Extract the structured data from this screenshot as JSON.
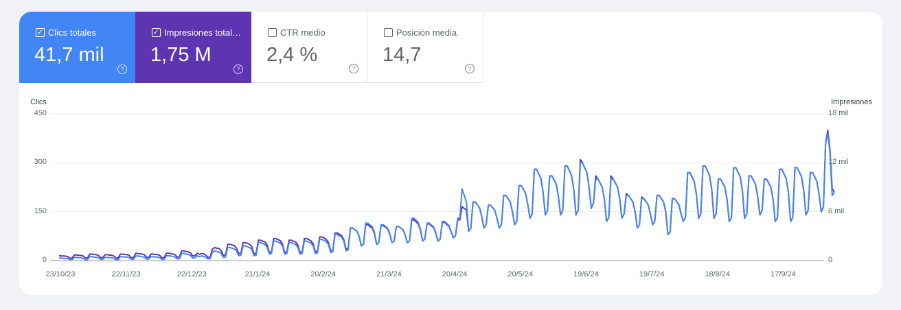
{
  "tabs": [
    {
      "label": "Clics totales",
      "value": "41,7 mil",
      "checked": true,
      "color": "#4285f4"
    },
    {
      "label": "Impresiones total…",
      "value": "1,75 M",
      "checked": true,
      "color": "#5e35b1"
    },
    {
      "label": "CTR medio",
      "value": "2,4 %",
      "checked": false
    },
    {
      "label": "Posición media",
      "value": "14,7",
      "checked": false
    }
  ],
  "help_icon": "?",
  "chart_data": {
    "type": "line",
    "left_axis": {
      "title": "Clics",
      "ticks": [
        "450",
        "300",
        "150",
        "0"
      ],
      "range": [
        0,
        450
      ]
    },
    "right_axis": {
      "title": "Impresiones",
      "ticks": [
        "18 mil",
        "12 mil",
        "6 mil",
        "0"
      ],
      "range": [
        0,
        18000
      ]
    },
    "x_ticks": [
      "23/10/23",
      "22/11/23",
      "22/12/23",
      "21/1/24",
      "20/2/24",
      "21/3/24",
      "20/4/24",
      "20/5/24",
      "19/6/24",
      "19/7/24",
      "18/8/24",
      "17/9/24"
    ],
    "start_date": "23/10/23",
    "grid": true,
    "series": [
      {
        "name": "Clics",
        "axis": "left",
        "color": "#4285f4",
        "values": [
          8,
          8,
          7,
          7,
          6,
          3,
          3,
          10,
          10,
          9,
          9,
          7,
          3,
          3,
          12,
          12,
          11,
          10,
          9,
          4,
          4,
          10,
          10,
          9,
          9,
          7,
          3,
          3,
          12,
          12,
          11,
          11,
          9,
          4,
          4,
          14,
          14,
          13,
          12,
          10,
          4,
          5,
          12,
          12,
          11,
          11,
          9,
          3,
          4,
          15,
          15,
          14,
          13,
          11,
          5,
          6,
          22,
          22,
          20,
          19,
          16,
          8,
          9,
          15,
          12,
          14,
          13,
          10,
          5,
          6,
          25,
          30,
          28,
          27,
          22,
          10,
          11,
          40,
          40,
          38,
          36,
          30,
          15,
          16,
          45,
          45,
          43,
          40,
          34,
          15,
          17,
          55,
          55,
          52,
          50,
          41,
          20,
          22,
          60,
          60,
          57,
          54,
          45,
          20,
          22,
          55,
          55,
          52,
          50,
          41,
          20,
          22,
          60,
          60,
          57,
          54,
          45,
          22,
          24,
          65,
          65,
          62,
          58,
          49,
          25,
          27,
          80,
          80,
          76,
          72,
          60,
          30,
          33,
          100,
          100,
          95,
          90,
          75,
          45,
          50,
          115,
          115,
          109,
          104,
          86,
          50,
          55,
          110,
          110,
          105,
          99,
          83,
          55,
          60,
          105,
          105,
          100,
          95,
          79,
          55,
          60,
          130,
          130,
          124,
          117,
          98,
          60,
          66,
          115,
          115,
          109,
          104,
          86,
          60,
          66,
          120,
          120,
          114,
          108,
          90,
          70,
          77,
          130,
          130,
          220,
          200,
          180,
          90,
          99,
          180,
          180,
          171,
          162,
          135,
          100,
          110,
          170,
          170,
          162,
          153,
          128,
          100,
          110,
          200,
          200,
          190,
          180,
          150,
          110,
          121,
          230,
          230,
          219,
          207,
          173,
          130,
          143,
          280,
          280,
          266,
          252,
          210,
          140,
          154,
          260,
          260,
          247,
          234,
          195,
          140,
          154,
          290,
          290,
          276,
          261,
          218,
          140,
          154,
          300,
          300,
          285,
          270,
          225,
          160,
          176,
          250,
          250,
          238,
          225,
          188,
          120,
          132,
          250,
          250,
          238,
          225,
          188,
          130,
          143,
          200,
          200,
          190,
          180,
          150,
          100,
          110,
          190,
          190,
          181,
          171,
          143,
          110,
          121,
          200,
          200,
          190,
          180,
          150,
          80,
          88,
          190,
          190,
          181,
          171,
          143,
          120,
          132,
          270,
          270,
          257,
          243,
          203,
          130,
          143,
          290,
          290,
          276,
          261,
          218,
          130,
          143,
          250,
          250,
          238,
          225,
          188,
          120,
          132,
          285,
          285,
          271,
          257,
          214,
          130,
          143,
          260,
          260,
          247,
          234,
          195,
          140,
          154,
          250,
          250,
          238,
          225,
          188,
          120,
          132,
          280,
          280,
          266,
          252,
          210,
          120,
          132,
          285,
          285,
          271,
          257,
          214,
          140,
          154,
          270,
          270,
          257,
          243,
          203,
          150,
          165,
          360,
          390,
          330,
          200,
          210
        ]
      },
      {
        "name": "Impresiones",
        "axis": "right",
        "color": "#5e35b1",
        "values": [
          600,
          580,
          560,
          550,
          480,
          300,
          320,
          700,
          700,
          660,
          640,
          560,
          320,
          340,
          800,
          800,
          760,
          720,
          640,
          360,
          380,
          720,
          720,
          680,
          660,
          560,
          320,
          340,
          800,
          800,
          760,
          740,
          640,
          360,
          380,
          880,
          880,
          840,
          800,
          700,
          380,
          420,
          800,
          800,
          760,
          740,
          640,
          340,
          380,
          900,
          900,
          860,
          820,
          720,
          420,
          460,
          1200,
          1200,
          1120,
          1080,
          940,
          560,
          600,
          900,
          760,
          860,
          820,
          680,
          400,
          440,
          1400,
          1600,
          1520,
          1480,
          1240,
          640,
          680,
          2000,
          2000,
          1920,
          1840,
          1560,
          840,
          880,
          2200,
          2200,
          2120,
          2000,
          1720,
          820,
          900,
          2500,
          2500,
          2380,
          2300,
          1920,
          1000,
          1080,
          2700,
          2700,
          2580,
          2440,
          2060,
          1000,
          1080,
          2500,
          2500,
          2380,
          2300,
          1920,
          1000,
          1080,
          2700,
          2700,
          2580,
          2440,
          2060,
          1080,
          1160,
          2900,
          2900,
          2780,
          2600,
          2220,
          1200,
          1280,
          3400,
          3400,
          3240,
          3080,
          2600,
          1400,
          1520,
          4000,
          4000,
          3800,
          3600,
          3000,
          1800,
          2000,
          4400,
          4400,
          4180,
          3980,
          3300,
          2000,
          2200,
          4300,
          4300,
          4100,
          3880,
          3240,
          2200,
          2400,
          4200,
          4200,
          4000,
          3800,
          3160,
          2200,
          2400,
          5000,
          5000,
          4760,
          4500,
          3760,
          2400,
          2640,
          4500,
          4500,
          4260,
          4060,
          3360,
          2400,
          2640,
          4700,
          4700,
          4460,
          4220,
          3520,
          2800,
          3080,
          5000,
          5000,
          6600,
          6400,
          6200,
          3600,
          3960,
          7200,
          7200,
          6840,
          6480,
          5400,
          4000,
          4400,
          6800,
          6800,
          6480,
          6120,
          5120,
          4000,
          4400,
          8000,
          8000,
          7600,
          7200,
          6000,
          4400,
          4840,
          9200,
          9200,
          8760,
          8280,
          6920,
          5200,
          5720,
          11200,
          11200,
          10640,
          10080,
          8400,
          5600,
          6160,
          10400,
          10400,
          9880,
          9360,
          7800,
          5600,
          6160,
          11600,
          11600,
          11040,
          10440,
          8720,
          5600,
          6160,
          12400,
          12000,
          11400,
          10800,
          9000,
          6400,
          7040,
          10400,
          10000,
          9520,
          9000,
          7520,
          4800,
          5280,
          10400,
          10000,
          9520,
          9000,
          7520,
          5200,
          5720,
          8200,
          8000,
          7600,
          7200,
          6000,
          4000,
          4400,
          7800,
          7600,
          7240,
          6840,
          5720,
          4400,
          4840,
          8000,
          8000,
          7600,
          7200,
          6000,
          3200,
          3520,
          7600,
          7600,
          7240,
          6840,
          5720,
          4800,
          5280,
          10800,
          10800,
          10280,
          9720,
          8120,
          5200,
          5720,
          11600,
          11600,
          11040,
          10440,
          8720,
          5200,
          5720,
          10000,
          10000,
          9520,
          9000,
          7520,
          4800,
          5280,
          11400,
          11400,
          10840,
          10280,
          8560,
          5200,
          5720,
          10400,
          10400,
          9880,
          9360,
          7800,
          5600,
          6160,
          10000,
          10000,
          9520,
          9000,
          7520,
          4800,
          5280,
          11200,
          11200,
          10640,
          10080,
          8400,
          4800,
          5280,
          11400,
          11400,
          10840,
          10280,
          8560,
          5600,
          6160,
          10800,
          10800,
          10280,
          9720,
          8120,
          6000,
          6600,
          14400,
          16000,
          13600,
          8800,
          8400
        ]
      }
    ]
  }
}
